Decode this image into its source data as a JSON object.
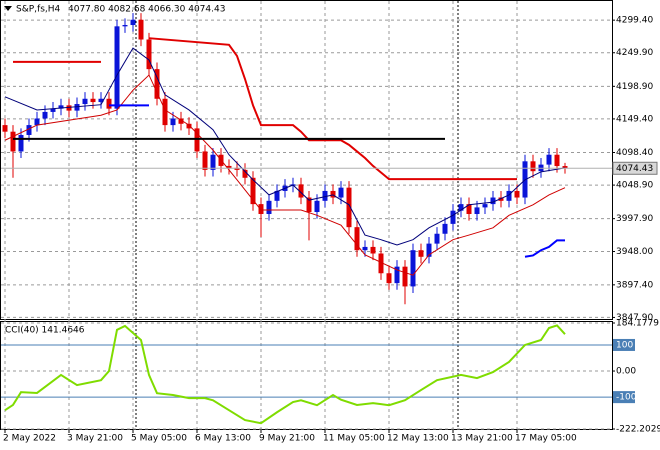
{
  "chart_data": [
    {
      "type": "candlestick",
      "title": "S&P,fs,H4",
      "subtitle": "4077.80 4082.68 4066.30 4074.43",
      "up_color": "#0a14d8",
      "down_color": "#e00000",
      "open": [
        4140,
        4130,
        4100,
        4125,
        4140,
        4150,
        4160,
        4165,
        4170,
        4162,
        4172,
        4180,
        4175,
        4180,
        4165,
        4290,
        4292,
        4300,
        4270,
        4225,
        4180,
        4140,
        4150,
        4142,
        4135,
        4100,
        4072,
        4095,
        4078,
        4075,
        4072,
        4060,
        4020,
        4005,
        4025,
        4040,
        4048,
        4050,
        4030,
        4008,
        4025,
        4040,
        4030,
        4045,
        3985,
        3950,
        3955,
        3945,
        3915,
        3900,
        3925,
        3895,
        3950,
        3940,
        3960,
        3975,
        3990,
        4010,
        4020,
        4005,
        4015,
        4020,
        4030,
        4025,
        4040,
        4030,
        4085,
        4070,
        4080,
        4095,
        4077.8
      ],
      "high": [
        4150,
        4140,
        4135,
        4150,
        4160,
        4170,
        4175,
        4180,
        4180,
        4182,
        4190,
        4190,
        4190,
        4190,
        4300,
        4302,
        4310,
        4310,
        4280,
        4235,
        4190,
        4160,
        4160,
        4152,
        4145,
        4110,
        4105,
        4105,
        4088,
        4085,
        4082,
        4070,
        4030,
        4035,
        4050,
        4058,
        4060,
        4060,
        4040,
        4035,
        4050,
        4050,
        4055,
        4055,
        3995,
        3965,
        3965,
        3955,
        3925,
        3935,
        3935,
        3960,
        3960,
        3970,
        3985,
        4000,
        4020,
        4030,
        4030,
        4025,
        4030,
        4040,
        4040,
        4050,
        4050,
        4095,
        4095,
        4090,
        4105,
        4105,
        4082.68
      ],
      "low": [
        4120,
        4060,
        4090,
        4115,
        4130,
        4140,
        4150,
        4155,
        4152,
        4152,
        4162,
        4165,
        4165,
        4155,
        4155,
        4280,
        4282,
        4260,
        4215,
        4170,
        4130,
        4130,
        4132,
        4125,
        4090,
        4062,
        4062,
        4068,
        4065,
        4062,
        4050,
        4010,
        3970,
        3995,
        4015,
        4030,
        4038,
        4020,
        3965,
        3998,
        4015,
        4020,
        4020,
        3975,
        3940,
        3940,
        3935,
        3905,
        3890,
        3890,
        3868,
        3885,
        3930,
        3930,
        3950,
        3965,
        3980,
        4000,
        3995,
        3995,
        4005,
        4010,
        4015,
        4015,
        4020,
        4020,
        4060,
        4060,
        4070,
        4067.8,
        4066.3
      ],
      "close": [
        4130,
        4100,
        4125,
        4140,
        4150,
        4160,
        4165,
        4170,
        4162,
        4172,
        4180,
        4175,
        4180,
        4165,
        4290,
        4292,
        4300,
        4270,
        4225,
        4180,
        4140,
        4150,
        4142,
        4135,
        4100,
        4072,
        4095,
        4078,
        4075,
        4072,
        4060,
        4020,
        4005,
        4025,
        4040,
        4048,
        4050,
        4030,
        4008,
        4025,
        4040,
        4030,
        4045,
        3985,
        3950,
        3955,
        3945,
        3915,
        3900,
        3925,
        3895,
        3950,
        3940,
        3960,
        3975,
        3990,
        4010,
        4020,
        4005,
        4015,
        4020,
        4030,
        4025,
        4040,
        4030,
        4085,
        4070,
        4080,
        4095,
        4077.8,
        4074.43
      ],
      "last_price_label": "4074.43",
      "overlays": [
        {
          "color": "#00007a",
          "width": 1,
          "x": [
            0,
            4,
            12,
            14,
            16,
            18,
            20,
            23,
            26,
            28,
            31,
            33,
            36,
            38,
            41,
            43,
            45,
            47,
            49,
            51,
            53,
            56,
            58,
            61,
            63,
            65,
            67,
            70
          ],
          "values": [
            4183,
            4163,
            4171,
            4216,
            4257,
            4239,
            4186,
            4163,
            4133,
            4095,
            4057,
            4034,
            4049,
            4026,
            4034,
            4019,
            3973,
            3966,
            3958,
            3966,
            3984,
            4003,
            4019,
            4023,
            4034,
            4057,
            4069,
            4075
          ]
        },
        {
          "color": "#d00000",
          "width": 1,
          "x": [
            0,
            4,
            12,
            14,
            16,
            18,
            20,
            23,
            26,
            29,
            32,
            35,
            37,
            39,
            42,
            45,
            49,
            51,
            53,
            56,
            58,
            61,
            63,
            66,
            68,
            70
          ],
          "values": [
            4117,
            4140,
            4155,
            4163,
            4193,
            4216,
            4163,
            4140,
            4102,
            4057,
            4011,
            4011,
            4011,
            4003,
            3988,
            3943,
            3920,
            3912,
            3943,
            3966,
            3973,
            3984,
            4003,
            4019,
            4034,
            4045
          ]
        },
        {
          "color": "#e00000",
          "width": 2,
          "x": [
            1,
            12
          ],
          "values": [
            4236,
            4236
          ]
        },
        {
          "color": "#0000ff",
          "width": 2,
          "x": [
            13,
            18
          ],
          "values": [
            4170,
            4170
          ]
        },
        {
          "color": "#e00000",
          "width": 2,
          "x": [
            18,
            28,
            29,
            30,
            31,
            32,
            36,
            37,
            38,
            42,
            43,
            44,
            45,
            46,
            47,
            48,
            64
          ],
          "values": [
            4272,
            4262,
            4245,
            4210,
            4170,
            4140,
            4140,
            4130,
            4117,
            4117,
            4110,
            4100,
            4090,
            4078,
            4068,
            4058,
            4058
          ]
        },
        {
          "color": "#0000ff",
          "width": 2,
          "x": [
            65,
            66,
            67,
            68,
            69,
            70
          ],
          "values": [
            3940,
            3942,
            3950,
            3955,
            3965,
            3965
          ]
        },
        {
          "color": "#000000",
          "width": 2,
          "x": [
            1,
            55
          ],
          "values": [
            4119,
            4119
          ]
        }
      ],
      "ylim": [
        3844,
        4330
      ],
      "yticks": [
        {
          "value": 4299.4,
          "label": "4299.40"
        },
        {
          "value": 4249.9,
          "label": "4249.90"
        },
        {
          "value": 4198.9,
          "label": "4198.90"
        },
        {
          "value": 4149.4,
          "label": "4149.40"
        },
        {
          "value": 4098.4,
          "label": "4098.40"
        },
        {
          "value": 4048.9,
          "label": "4048.90"
        },
        {
          "value": 3997.9,
          "label": "3997.90"
        },
        {
          "value": 3948,
          "label": "3948.00"
        },
        {
          "value": 3897.4,
          "label": "3897.40"
        },
        {
          "value": 3847.9,
          "label": "3847.90"
        }
      ],
      "xticks": [
        {
          "value": 0,
          "label": "2 May 2022"
        },
        {
          "value": 8,
          "label": "3 May 21:00"
        },
        {
          "value": 16,
          "label": "5 May 05:00"
        },
        {
          "value": 24,
          "label": "6 May 13:00"
        },
        {
          "value": 32,
          "label": "9 May 21:00"
        },
        {
          "value": 40,
          "label": "11 May 05:00"
        },
        {
          "value": 48,
          "label": "12 May 13:00"
        },
        {
          "value": 56,
          "label": "13 May 21:00"
        },
        {
          "value": 64,
          "label": "17 May 05:00"
        }
      ],
      "grid": true
    },
    {
      "type": "line",
      "title": "CCI(40) 141.4646",
      "color": "#7fdc00",
      "x": [
        0,
        1,
        2,
        4,
        7,
        9,
        12,
        13,
        14,
        15,
        17,
        18,
        19,
        21,
        23,
        25,
        26,
        28,
        30,
        32,
        34,
        36,
        37,
        39,
        41,
        42,
        44,
        46,
        48,
        50,
        52,
        54,
        57,
        59,
        61,
        63,
        65,
        67,
        68,
        69,
        70
      ],
      "values": [
        -150,
        -130,
        -81,
        -84,
        -15,
        -54,
        -35,
        0,
        158,
        173,
        119,
        -15,
        -85,
        -92,
        -104,
        -104,
        -112,
        -150,
        -188,
        -200,
        -158,
        -119,
        -112,
        -131,
        -92,
        -110,
        -130,
        -123,
        -131,
        -112,
        -73,
        -35,
        -15,
        -27,
        -4,
        35,
        100,
        119,
        165,
        175,
        141.4646
      ],
      "ylim": [
        -222.2029,
        184.1779
      ],
      "yticks": [
        184.1779,
        {
          "value": 0,
          "label": "0.00"
        },
        -222.2029
      ],
      "levels": [
        100,
        -100
      ],
      "level_color": "#4a7fb5",
      "grid": true
    }
  ]
}
